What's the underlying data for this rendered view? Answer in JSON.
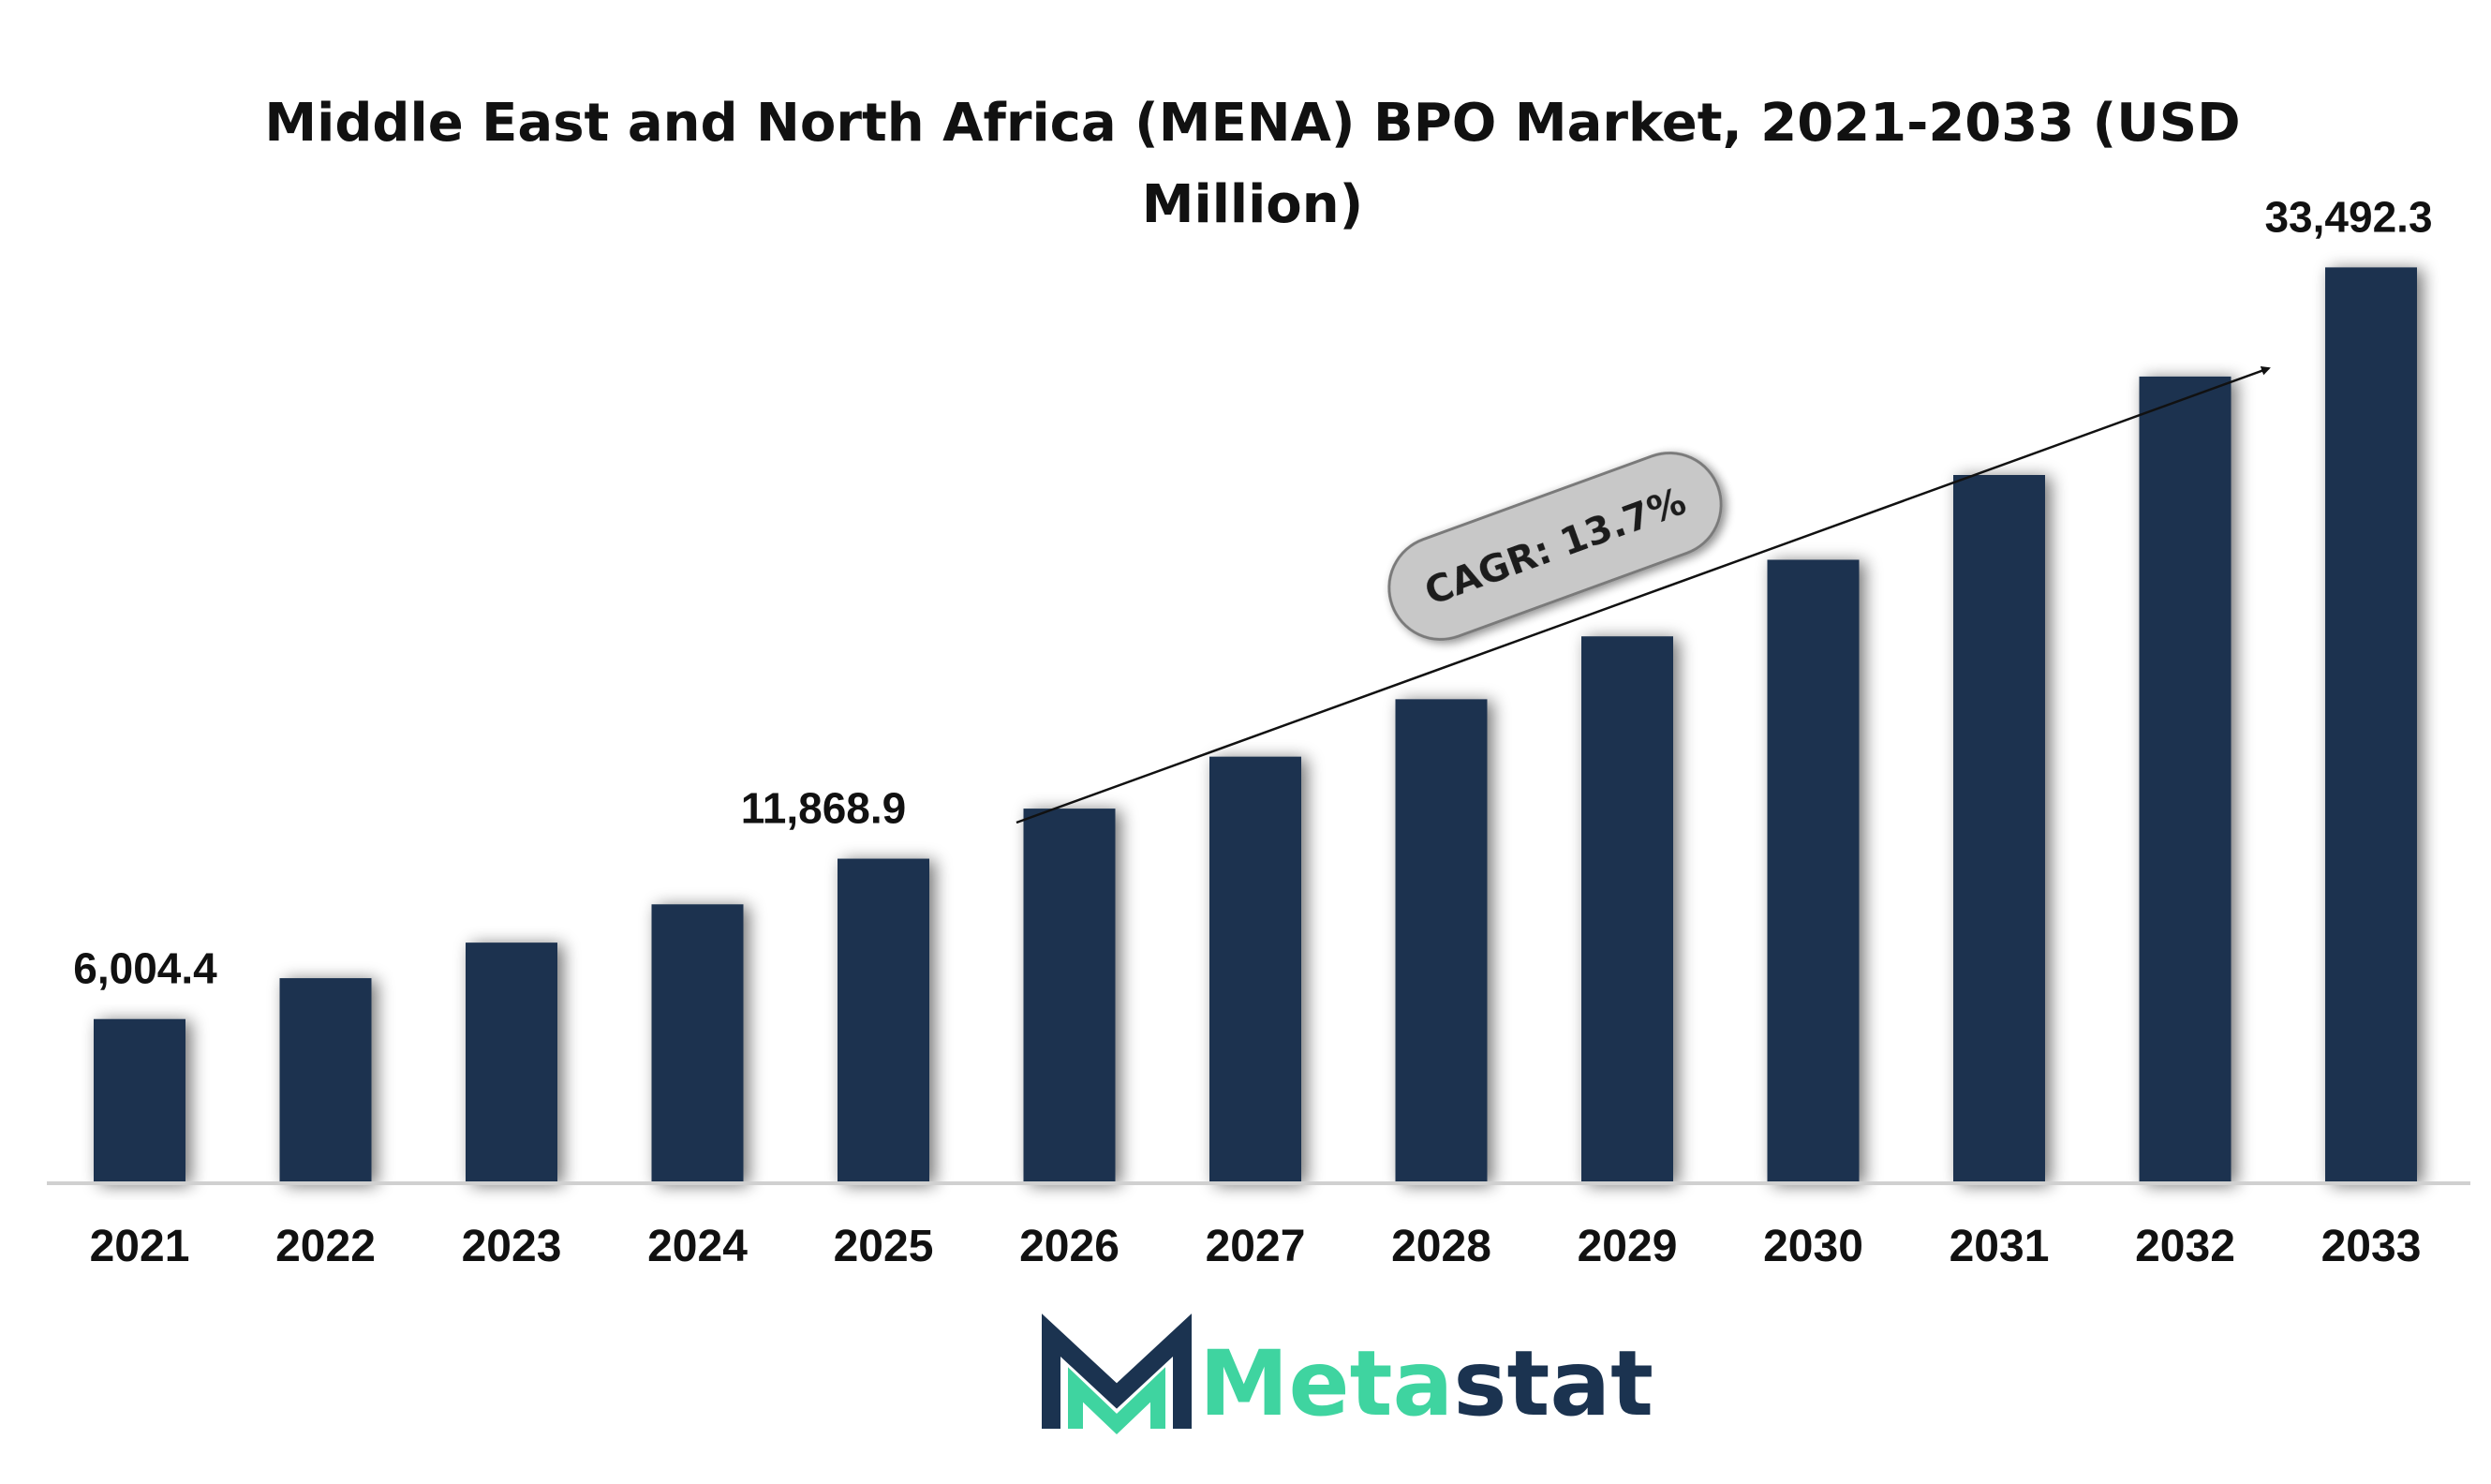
{
  "chart_data": {
    "type": "bar",
    "title_lines": [
      "Middle East and North Africa (MENA) BPO Market, 2021-2033 (USD",
      "Million)"
    ],
    "categories": [
      "2021",
      "2022",
      "2023",
      "2024",
      "2025",
      "2026",
      "2027",
      "2028",
      "2029",
      "2030",
      "2031",
      "2032",
      "2033"
    ],
    "values": [
      6004.4,
      7500,
      8800,
      10200,
      11868.9,
      13700,
      15600,
      17700,
      20000,
      22800,
      25900,
      29500,
      33492.3
    ],
    "data_labels": [
      {
        "index": 0,
        "text": "6,004.4"
      },
      {
        "index": 4,
        "text": "11,868.9"
      },
      {
        "index": 12,
        "text": "33,492.3"
      }
    ],
    "annotation": {
      "text": "CAGR: 13.7%"
    },
    "bar_color": "#1b3350",
    "ylim": [
      0,
      37000
    ],
    "grid": false,
    "legend": "none"
  },
  "brand": {
    "part1": "Meta",
    "part2": "stat",
    "color1": "#3fd4a0",
    "color2": "#1b3350"
  }
}
